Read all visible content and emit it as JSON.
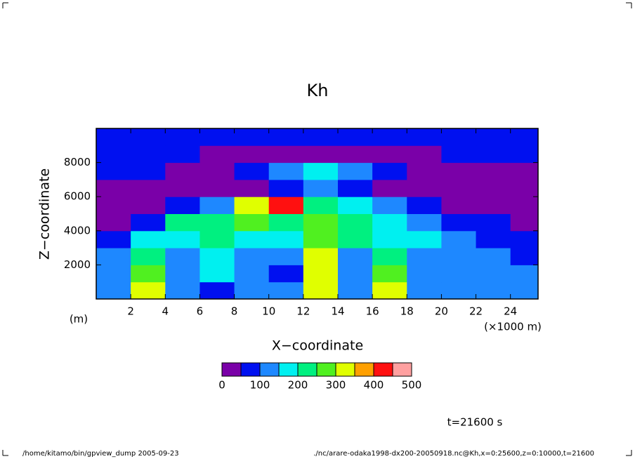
{
  "chart_data": {
    "type": "heatmap",
    "title": "Kh",
    "x_label": "X−coordinate",
    "y_label": "Z−coordinate",
    "y_unit": "(m)",
    "x_unit": "(×1000 m)",
    "time_label": "t=21600 s",
    "footer_left": "/home/kitamo/bin/gpview_dump  2005-09-23",
    "footer_right": "./nc/arare-odaka1998-dx200-20050918.nc@Kh,x=0:25600,z=0:10000,t=21600",
    "x": [
      1,
      3,
      5,
      7,
      9,
      11,
      13,
      15,
      17,
      19,
      21,
      23,
      25
    ],
    "y": [
      500,
      1500,
      2500,
      3500,
      4500,
      5500,
      6500,
      7500,
      8500,
      9500
    ],
    "values": [
      [
        130,
        320,
        120,
        90,
        130,
        110,
        330,
        120,
        300,
        140,
        110,
        120,
        130
      ],
      [
        120,
        260,
        130,
        170,
        100,
        90,
        320,
        130,
        270,
        120,
        120,
        110,
        100
      ],
      [
        110,
        230,
        120,
        170,
        110,
        120,
        310,
        140,
        200,
        130,
        120,
        100,
        80
      ],
      [
        60,
        170,
        170,
        200,
        150,
        160,
        280,
        200,
        180,
        170,
        110,
        90,
        60
      ],
      [
        30,
        80,
        220,
        230,
        250,
        230,
        260,
        230,
        180,
        130,
        80,
        60,
        30
      ],
      [
        30,
        30,
        80,
        140,
        320,
        420,
        230,
        150,
        100,
        60,
        40,
        40,
        30
      ],
      [
        40,
        40,
        30,
        30,
        40,
        60,
        120,
        80,
        40,
        30,
        30,
        30,
        40
      ],
      [
        70,
        60,
        40,
        30,
        60,
        100,
        170,
        120,
        70,
        40,
        30,
        30,
        40
      ],
      [
        70,
        80,
        60,
        40,
        30,
        30,
        40,
        40,
        30,
        40,
        60,
        80,
        70
      ],
      [
        70,
        70,
        70,
        60,
        70,
        70,
        70,
        60,
        60,
        70,
        70,
        70,
        70
      ]
    ],
    "xlim": [
      0,
      25.6
    ],
    "xticks": [
      2,
      4,
      6,
      8,
      10,
      12,
      14,
      16,
      18,
      20,
      22,
      24
    ],
    "ylim": [
      0,
      10000
    ],
    "yticks": [
      2000,
      4000,
      6000,
      8000
    ],
    "levels": [
      0,
      50,
      100,
      150,
      200,
      250,
      300,
      350,
      400,
      450,
      500
    ],
    "colors": [
      "#7a00a8",
      "#0010f0",
      "#1e88ff",
      "#00f0f0",
      "#00f080",
      "#50f020",
      "#e0ff00",
      "#ffa000",
      "#ff1010",
      "#ffa0a0"
    ],
    "colorbar_ticks": [
      0,
      100,
      200,
      300,
      400,
      500
    ]
  }
}
